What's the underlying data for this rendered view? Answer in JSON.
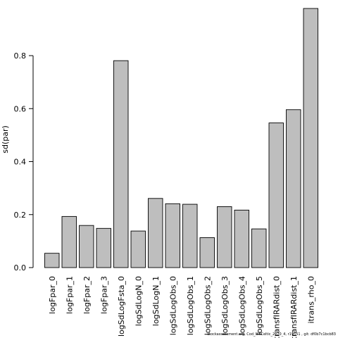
{
  "chart_data": {
    "type": "bar",
    "categories": [
      "logFpar_0",
      "logFpar_1",
      "logFpar_2",
      "logFpar_3",
      "logSdLogFsta_0",
      "logSdLogN_0",
      "logSdLogN_1",
      "logSdLogObs_0",
      "logSdLogObs_1",
      "logSdLogObs_2",
      "logSdLogObs_3",
      "logSdLogObs_4",
      "logSdLogObs_5",
      "transfIRARdist_0",
      "transfIRARdist_1",
      "itrans_rho_0"
    ],
    "values": [
      0.054,
      0.193,
      0.159,
      0.148,
      0.781,
      0.138,
      0.261,
      0.241,
      0.239,
      0.113,
      0.23,
      0.217,
      0.146,
      0.546,
      0.596,
      0.978
    ],
    "ylabel": "sd(par)",
    "yticks": [
      "0.0",
      "0.2",
      "0.4",
      "0.6",
      "0.8"
    ],
    "ylim": [
      0,
      1.0
    ],
    "bar_color": "#bebebe",
    "grid": false
  },
  "footer": "stockassessment.org, Cod_WKCeltic_2020_4, r19551 , git: df0b7c1bcb83"
}
